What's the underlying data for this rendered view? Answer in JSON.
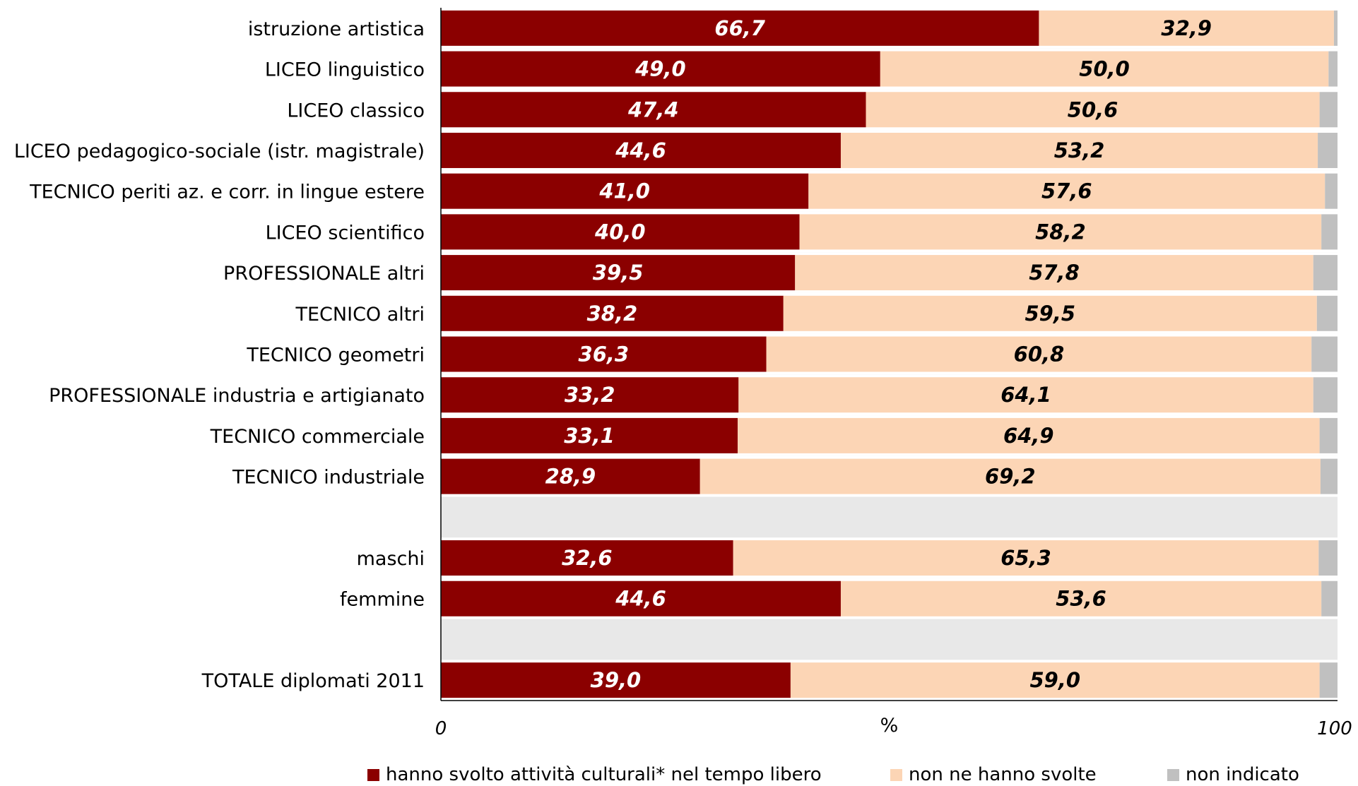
{
  "chart_data": {
    "type": "bar",
    "orientation": "horizontal",
    "stacked": true,
    "xlim": [
      0,
      100
    ],
    "xticks": [
      "0",
      "100"
    ],
    "xlabel": "%",
    "categories": [
      "istruzione artistica",
      "LICEO linguistico",
      "LICEO classico",
      "LICEO pedagogico-sociale (istr. magistrale)",
      "TECNICO periti az. e corr. in lingue estere",
      "LICEO scientifico",
      "PROFESSIONALE altri",
      "TECNICO altri",
      "TECNICO geometri",
      "PROFESSIONALE industria e artigianato",
      "TECNICO commerciale",
      "TECNICO industriale",
      "",
      "maschi",
      "femmine",
      "",
      "TOTALE diplomati 2011"
    ],
    "series": [
      {
        "name": "hanno svolto attività culturali* nel tempo libero",
        "color": "#8b0000",
        "label_color": "#ffffff",
        "values": [
          66.7,
          49.0,
          47.4,
          44.6,
          41.0,
          40.0,
          39.5,
          38.2,
          36.3,
          33.2,
          33.1,
          28.9,
          null,
          32.6,
          44.6,
          null,
          39.0
        ],
        "labels": [
          "66,7",
          "49,0",
          "47,4",
          "44,6",
          "41,0",
          "40,0",
          "39,5",
          "38,2",
          "36,3",
          "33,2",
          "33,1",
          "28,9",
          "",
          "32,6",
          "44,6",
          "",
          "39,0"
        ]
      },
      {
        "name": "non ne hanno svolte",
        "color": "#fcd5b5",
        "label_color": "#000000",
        "values": [
          32.9,
          50.0,
          50.6,
          53.2,
          57.6,
          58.2,
          57.8,
          59.5,
          60.8,
          64.1,
          64.9,
          69.2,
          null,
          65.3,
          53.6,
          null,
          59.0
        ],
        "labels": [
          "32,9",
          "50,0",
          "50,6",
          "53,2",
          "57,6",
          "58,2",
          "57,8",
          "59,5",
          "60,8",
          "64,1",
          "64,9",
          "69,2",
          "",
          "65,3",
          "53,6",
          "",
          "59,0"
        ]
      },
      {
        "name": "non indicato",
        "color": "#c0c0c0",
        "values": [
          0.4,
          1.0,
          2.0,
          2.2,
          1.4,
          1.8,
          2.7,
          2.3,
          2.9,
          2.7,
          2.0,
          1.9,
          null,
          2.1,
          1.8,
          null,
          2.0
        ]
      }
    ],
    "background_band_color": "#e8e8e8",
    "legend_position": "bottom"
  }
}
